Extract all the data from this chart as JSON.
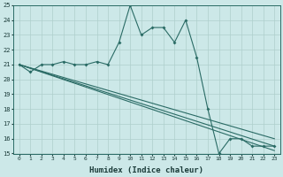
{
  "xlabel": "Humidex (Indice chaleur)",
  "bg_color": "#cce8e8",
  "line_color": "#2a6b65",
  "grid_color": "#aecfcc",
  "series": {
    "line1": {
      "x": [
        0,
        1,
        2,
        3,
        4,
        5,
        6,
        7,
        8,
        9,
        10,
        11,
        12,
        13,
        14,
        15,
        16,
        17,
        18,
        19,
        20,
        21,
        22,
        23
      ],
      "y": [
        21,
        20.5,
        21,
        21,
        21.2,
        21,
        21,
        21.2,
        21,
        22.5,
        25,
        23,
        23.5,
        23.5,
        22.5,
        24,
        21.5,
        18,
        15,
        16,
        16,
        15.5,
        15.5,
        15.5
      ]
    },
    "line2": {
      "x": [
        0,
        23
      ],
      "y": [
        21,
        16
      ]
    },
    "line3": {
      "x": [
        0,
        23
      ],
      "y": [
        21,
        15.5
      ]
    },
    "line4": {
      "x": [
        0,
        23
      ],
      "y": [
        21,
        15.2
      ]
    }
  },
  "ylim": [
    15,
    25
  ],
  "xlim": [
    -0.5,
    23.5
  ],
  "yticks": [
    15,
    16,
    17,
    18,
    19,
    20,
    21,
    22,
    23,
    24,
    25
  ],
  "xticks": [
    0,
    1,
    2,
    3,
    4,
    5,
    6,
    7,
    8,
    9,
    10,
    11,
    12,
    13,
    14,
    15,
    16,
    17,
    18,
    19,
    20,
    21,
    22,
    23
  ]
}
